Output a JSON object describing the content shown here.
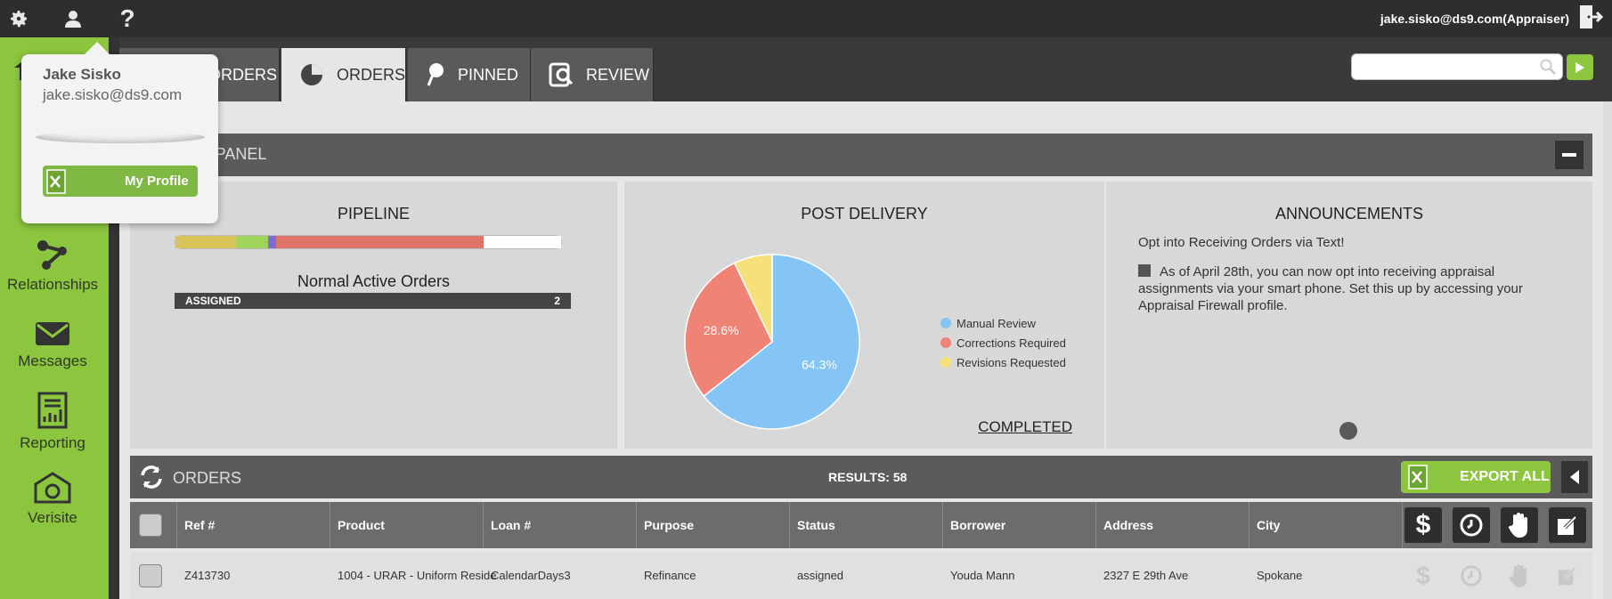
{
  "topbar": {
    "icons": [
      "gear-icon",
      "user-icon",
      "help-icon"
    ],
    "help_glyph": "?",
    "user_email": "jake.sisko@ds9.com(Appraiser)",
    "logout_icon": "logout-icon"
  },
  "sidebar": {
    "items": [
      {
        "label": "Relationships",
        "icon": "relationships-icon"
      },
      {
        "label": "Messages",
        "icon": "envelope-icon"
      },
      {
        "label": "Reporting",
        "icon": "report-icon"
      },
      {
        "label": "Verisite",
        "icon": "camera-icon"
      }
    ]
  },
  "tabs": [
    {
      "label": "ORDERS",
      "icon": "orders-icon",
      "active": false
    },
    {
      "label": "ORDERS",
      "icon": "pie-icon",
      "active": true
    },
    {
      "label": "PINNED",
      "icon": "pin-icon",
      "active": false
    },
    {
      "label": "REVIEW",
      "icon": "review-icon",
      "active": false
    }
  ],
  "search": {
    "placeholder": "",
    "value": ""
  },
  "panel": {
    "title": "T PANEL"
  },
  "pipeline": {
    "title": "PIPELINE",
    "segments": [
      {
        "fraction": 0.16,
        "color": "#d9c45a"
      },
      {
        "fraction": 0.08,
        "color": "#9ed45a"
      },
      {
        "fraction": 0.02,
        "color": "#7b6fd0"
      },
      {
        "fraction": 0.54,
        "color": "#e0766a"
      },
      {
        "fraction": 0.2,
        "color": "#ffffff"
      }
    ],
    "subtitle": "Normal Active Orders",
    "assigned_label": "ASSIGNED",
    "assigned_count": "2"
  },
  "post_delivery": {
    "title": "POST DELIVERY",
    "completed_link": "COMPLETED"
  },
  "chart_data": {
    "type": "pie",
    "title": "POST DELIVERY",
    "slices": [
      {
        "label": "Manual Review",
        "value": 64.3,
        "color": "#84c5f5",
        "display": "64.3%"
      },
      {
        "label": "Corrections Required",
        "value": 28.6,
        "color": "#ef8476",
        "display": "28.6%"
      },
      {
        "label": "Revisions Requested",
        "value": 7.1,
        "color": "#f5e07a",
        "display": ""
      }
    ],
    "legend": "right"
  },
  "announcements": {
    "title": "ANNOUNCEMENTS",
    "headline": "Opt into Receiving Orders via Text!",
    "body": "As of April 28th, you can now opt into receiving appraisal assignments via your smart phone. Set this up by accessing your Appraisal Firewall profile."
  },
  "orders": {
    "label": "ORDERS",
    "results": "RESULTS: 58",
    "export_label": "EXPORT ALL",
    "columns": [
      "Ref #",
      "Product",
      "Loan #",
      "Purpose",
      "Status",
      "Borrower",
      "Address",
      "City"
    ],
    "action_icons": [
      "dollar-icon",
      "clock-icon",
      "hand-icon",
      "edit-icon"
    ],
    "action_glyphs": [
      "$"
    ],
    "rows": [
      {
        "ref": "Z413730",
        "product": "1004 - URAR - Uniform Reside",
        "loan": "CalendarDays3",
        "purpose": "Refinance",
        "status": "assigned",
        "borrower": "Youda Mann",
        "address": "2327 E 29th Ave",
        "city": "Spokane"
      }
    ]
  },
  "profile_popup": {
    "name": "Jake Sisko",
    "email": "jake.sisko@ds9.com",
    "button_label": "My Profile"
  }
}
